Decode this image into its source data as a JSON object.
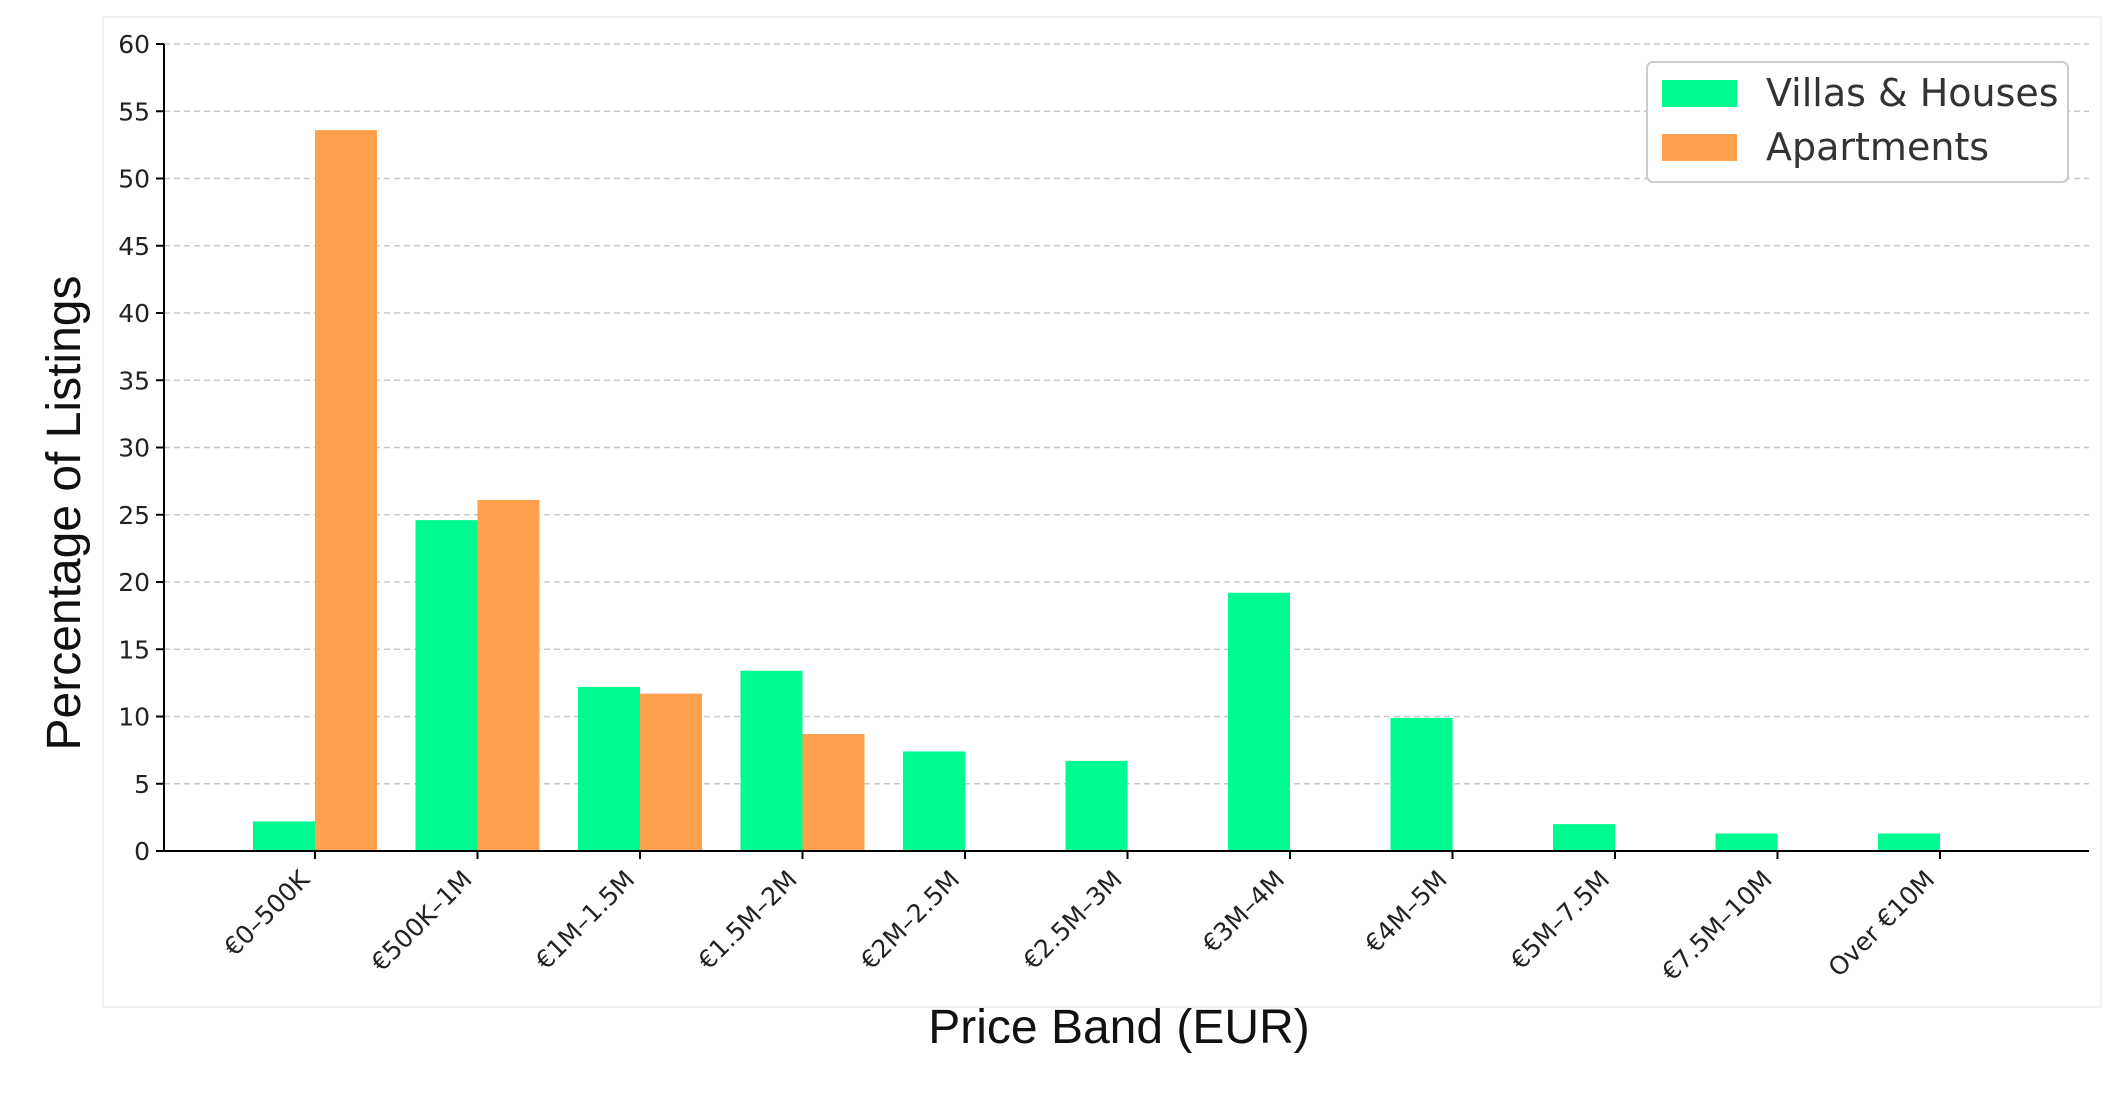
{
  "chart_data": {
    "type": "bar",
    "title": "",
    "xlabel": "Price Band (EUR)",
    "ylabel": "Percentage of Listings",
    "ylim": [
      0,
      60
    ],
    "yticks": [
      0,
      5,
      10,
      15,
      20,
      25,
      30,
      35,
      40,
      45,
      50,
      55,
      60
    ],
    "grid": "horizontal dashed",
    "legend_position": "top-right",
    "categories": [
      "€0–500K",
      "€500K–1M",
      "€1M–1.5M",
      "€1.5M–2M",
      "€2M–2.5M",
      "€2.5M–3M",
      "€3M–4M",
      "€4M–5M",
      "€5M–7.5M",
      "€7.5M–10M",
      "Over €10M"
    ],
    "series": [
      {
        "name": "Villas & Houses",
        "color": "#00fa92",
        "values": [
          2.2,
          24.6,
          12.2,
          13.4,
          7.4,
          6.7,
          19.2,
          9.9,
          2.0,
          1.3,
          1.3
        ]
      },
      {
        "name": "Apartments",
        "color": "#ffa04d",
        "values": [
          53.6,
          26.1,
          11.7,
          8.7,
          0,
          0,
          0,
          0,
          0,
          0,
          0
        ]
      }
    ]
  }
}
